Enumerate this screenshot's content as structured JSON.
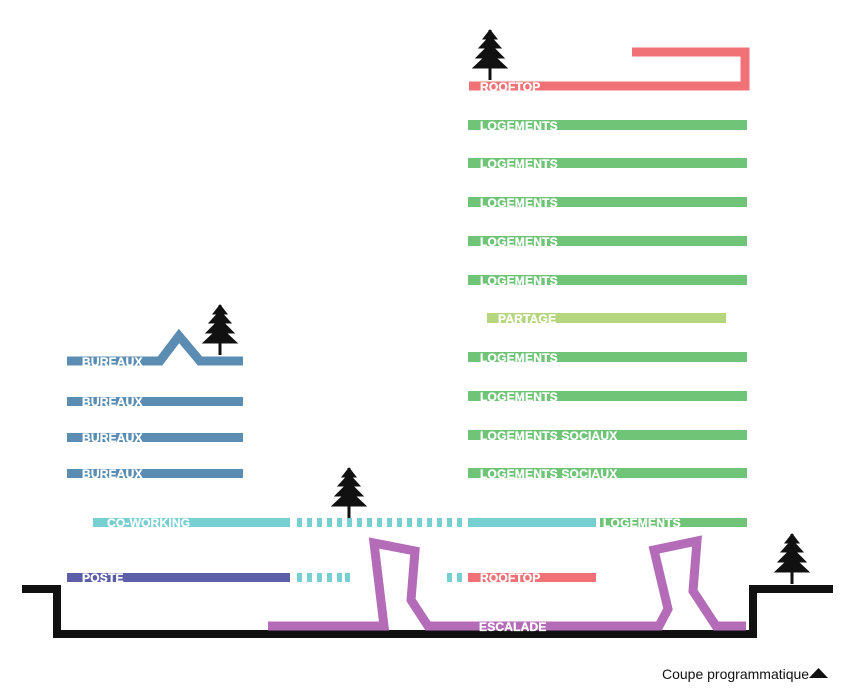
{
  "colors": {
    "offices": "#5b8db3",
    "housing": "#6fc478",
    "shared": "#b5d67d",
    "rooftop": "#f07176",
    "coworking": "#77cfd2",
    "post": "#5c5ea8",
    "climbing": "#b46bb8",
    "ground": "#111111",
    "tree": "#111111",
    "label": "#ffffff"
  },
  "labels": {
    "rooftop_top": "ROOFTOP",
    "housing": "LOGEMENTS",
    "shared": "PARTAGE",
    "social_housing": "LOGEMENTS SOCIAUX",
    "offices": "BUREAUX",
    "coworking": "CO-WORKING",
    "post": "POSTE",
    "rooftop_low": "ROOFTOP",
    "climbing": "ESCALADE"
  },
  "caption": {
    "text": "Coupe programmatique",
    "icon": "triangle-up-icon"
  }
}
